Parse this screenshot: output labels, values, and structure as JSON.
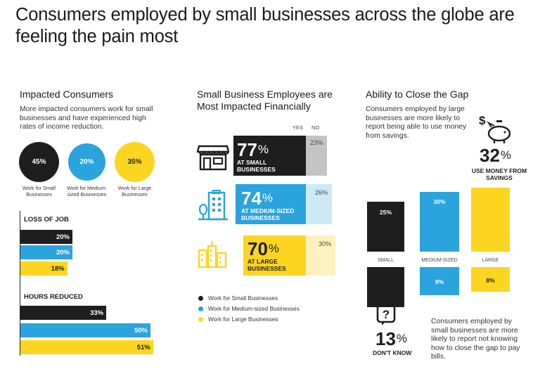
{
  "title": "Consumers employed by small businesses across the globe are feeling the pain most",
  "colors": {
    "small": "#1e1e1e",
    "medium": "#2ba3dc",
    "large": "#fcd520"
  },
  "impacted": {
    "heading": "Impacted Consumers",
    "body": "More impacted consumers work for small businesses and have experienced high rates of income reduction.",
    "circles": [
      {
        "value": "45%",
        "label": "Work for Small Businesses"
      },
      {
        "value": "20%",
        "label": "Work for Medium-sized Businesses"
      },
      {
        "value": "35%",
        "label": "Work for Large Businesses"
      }
    ],
    "loss_heading": "LOSS OF JOB",
    "loss_bars": [
      {
        "label": "20%",
        "value": 20
      },
      {
        "label": "20%",
        "value": 20
      },
      {
        "label": "18%",
        "value": 18
      }
    ],
    "hours_heading": "HOURS REDUCED",
    "hours_bars": [
      {
        "label": "33%",
        "value": 33
      },
      {
        "label": "50%",
        "value": 50
      },
      {
        "label": "51%",
        "value": 51
      }
    ]
  },
  "financial": {
    "heading": "Small Business Employees are Most Impacted Financially",
    "yes_label": "YES",
    "no_label": "NO",
    "rows": [
      {
        "yes": "77",
        "pct": "%",
        "sub": "AT SMALL BUSINESSES",
        "no": "23%",
        "icon": "storefront-icon"
      },
      {
        "yes": "74",
        "pct": "%",
        "sub": "AT MEDIUM-SIZED BUSINESSES",
        "no": "26%",
        "icon": "office-tree-icon"
      },
      {
        "yes": "70",
        "pct": "%",
        "sub": "AT LARGE BUSINESSES",
        "no": "30%",
        "icon": "skyline-icon"
      }
    ],
    "legend": [
      "Work for Small Businesses",
      "Work for Medium-sized Businesses",
      "Work for Large Businesses"
    ]
  },
  "gap": {
    "heading": "Ability to Close the Gap",
    "body": "Consumers employed by large businesses are more likely to report being able to use money from savings.",
    "savings_pct": "32",
    "savings_sign": "%",
    "savings_label": "USE MONEY FROM SAVINGS",
    "categories": [
      "SMALL",
      "MEDIUM-SIZED",
      "LARGE"
    ],
    "savings": [
      {
        "label": "25%",
        "value": 25
      },
      {
        "label": "30%",
        "value": 30
      },
      {
        "label": "32%",
        "value": 32
      }
    ],
    "dont_know": [
      {
        "label": "13%",
        "value": 13
      },
      {
        "label": "9%",
        "value": 9
      },
      {
        "label": "8%",
        "value": 8
      }
    ],
    "dont_know_pct": "13",
    "dont_know_sign": "%",
    "dont_know_label": "DON'T KNOW",
    "bottom_body": "Consumers employed by small businesses are more likely to report not knowing how to close the gap to pay bills."
  }
}
